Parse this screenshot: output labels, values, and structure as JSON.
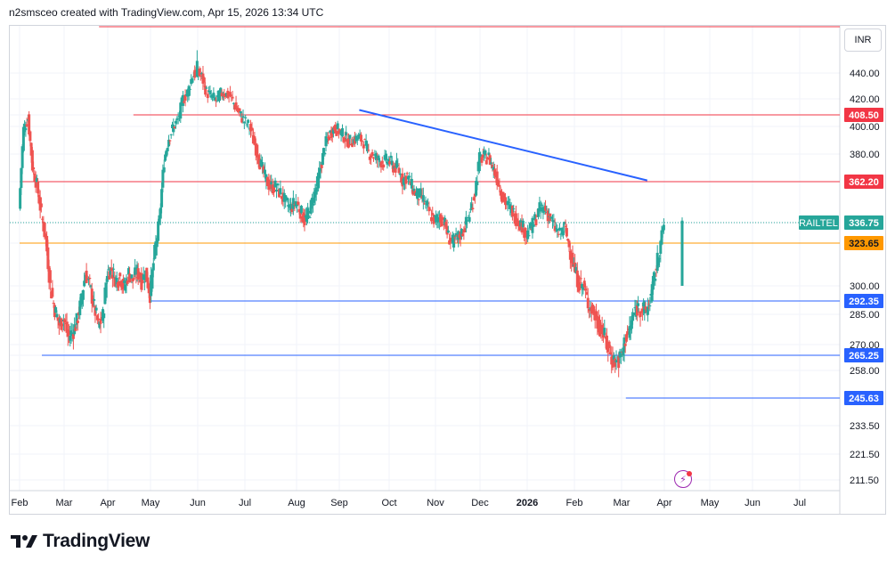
{
  "header": {
    "title": "n2smsceo created with TradingView.com, Apr 15, 2026 13:34 UTC"
  },
  "currency_button": "INR",
  "brand": "TradingView",
  "colors": {
    "up": "#26a69a",
    "down": "#ef5350",
    "resistance": "#f23645",
    "support": "#2962ff",
    "orange": "#ff9800",
    "trend": "#2962ff",
    "price": "#26a69a"
  },
  "icons": [
    "tradingview-logo-icon",
    "lightning-icon"
  ],
  "chart_data": {
    "type": "candlestick",
    "symbol": "RAILTEL",
    "currency": "INR",
    "last_price": 336.75,
    "ylim": [
      205,
      458
    ],
    "y_ticks": [
      211.5,
      221.5,
      233.5,
      245.63,
      258.0,
      265.25,
      270.0,
      285.0,
      292.35,
      300.0,
      323.65,
      336.75,
      362.2,
      380.0,
      400.0,
      408.5,
      420.0,
      440.0
    ],
    "y_tick_labels": [
      "211.50",
      "221.50",
      "233.50",
      "",
      "258.00",
      "",
      "270.00",
      "285.00",
      "",
      "300.00",
      "",
      "",
      "",
      "380.00",
      "400.00",
      "",
      "420.00",
      "440.00"
    ],
    "x_labels": [
      "Feb",
      "Mar",
      "Apr",
      "May",
      "Jun",
      "Jul",
      "Aug",
      "Sep",
      "Oct",
      "Nov",
      "Dec",
      "2026",
      "Feb",
      "Mar",
      "Apr",
      "May",
      "Jun",
      "Jul"
    ],
    "price_levels": [
      {
        "label": "408.50",
        "value": 408.5,
        "color": "#f23645",
        "start_month": 2.6
      },
      {
        "label": "362.20",
        "value": 362.2,
        "color": "#f23645",
        "start_month": 0
      },
      {
        "label": "323.65",
        "value": 323.65,
        "color": "#ff9800",
        "start_month": 0
      },
      {
        "label": "292.35",
        "value": 292.35,
        "color": "#2962ff",
        "start_month": 3.0
      },
      {
        "label": "265.25",
        "value": 265.25,
        "color": "#2962ff",
        "start_month": 0.5
      },
      {
        "label": "245.63",
        "value": 245.63,
        "color": "#2962ff",
        "start_month": 13.1
      }
    ],
    "top_line": {
      "value": 458,
      "start_month": 1.8,
      "color": "#f23645"
    },
    "trendline": {
      "start": {
        "month": 7.4,
        "value": 412
      },
      "end": {
        "month": 13.6,
        "value": 363
      },
      "color": "#2962ff"
    },
    "price_label": {
      "symbol": "RAILTEL",
      "value": "336.75"
    },
    "series": [
      {
        "name": "RAILTEL",
        "x_months": [
          0.0,
          0.1,
          0.2,
          0.3,
          0.4,
          0.5,
          0.6,
          0.7,
          0.8,
          0.9,
          1.0,
          1.1,
          1.2,
          1.3,
          1.4,
          1.5,
          1.6,
          1.7,
          1.8,
          1.9,
          2.0,
          2.1,
          2.2,
          2.3,
          2.4,
          2.5,
          2.6,
          2.7,
          2.8,
          2.9,
          3.0,
          3.1,
          3.2,
          3.3,
          3.4,
          3.5,
          3.6,
          3.7,
          3.8,
          3.9,
          4.0,
          4.1,
          4.2,
          4.3,
          4.4,
          4.5,
          4.6,
          4.7,
          4.8,
          4.9,
          5.0,
          5.1,
          5.2,
          5.3,
          5.4,
          5.5,
          5.6,
          5.7,
          5.8,
          5.9,
          6.0,
          6.1,
          6.2,
          6.3,
          6.4,
          6.5,
          6.6,
          6.7,
          6.8,
          6.9,
          7.0,
          7.1,
          7.2,
          7.3,
          7.4,
          7.5,
          7.6,
          7.7,
          7.8,
          7.9,
          8.0,
          8.1,
          8.2,
          8.3,
          8.4,
          8.5,
          8.6,
          8.7,
          8.8,
          8.9,
          9.0,
          9.1,
          9.2,
          9.3,
          9.4,
          9.5,
          9.6,
          9.7,
          9.8,
          9.9,
          10.0,
          10.1,
          10.2,
          10.3,
          10.4,
          10.5,
          10.6,
          10.7,
          10.8,
          10.9,
          11.0,
          11.1,
          11.2,
          11.3,
          11.4,
          11.5,
          11.6,
          11.7,
          11.8,
          11.9,
          12.0,
          12.1,
          12.2,
          12.3,
          12.4,
          12.5,
          12.6,
          12.7,
          12.8,
          12.9,
          13.0,
          13.1,
          13.2,
          13.3,
          13.4,
          13.5,
          13.6,
          13.7,
          13.8,
          13.9,
          14.0
        ],
        "close": [
          345,
          398,
          406,
          372,
          360,
          342,
          326,
          300,
          288,
          280,
          283,
          274,
          276,
          281,
          292,
          307,
          300,
          289,
          279,
          284,
          308,
          309,
          303,
          305,
          299,
          307,
          303,
          308,
          303,
          307,
          296,
          318,
          338,
          376,
          392,
          400,
          405,
          420,
          425,
          438,
          440,
          437,
          425,
          422,
          419,
          424,
          424,
          422,
          415,
          409,
          404,
          400,
          387,
          375,
          365,
          359,
          359,
          355,
          349,
          346,
          350,
          344,
          338,
          342,
          352,
          361,
          375,
          388,
          395,
          399,
          397,
          393,
          389,
          390,
          392,
          389,
          381,
          379,
          376,
          375,
          376,
          372,
          371,
          363,
          366,
          359,
          354,
          353,
          348,
          342,
          338,
          340,
          338,
          328,
          324,
          327,
          330,
          336,
          344,
          356,
          377,
          378,
          378,
          370,
          362,
          352,
          347,
          344,
          338,
          335,
          329,
          333,
          340,
          346,
          345,
          339,
          333,
          329,
          334,
          322,
          310,
          302,
          300,
          291,
          287,
          281,
          277,
          270,
          264,
          262,
          264,
          273,
          277,
          286,
          289,
          288,
          287,
          295,
          307,
          320,
          336
        ]
      }
    ]
  }
}
